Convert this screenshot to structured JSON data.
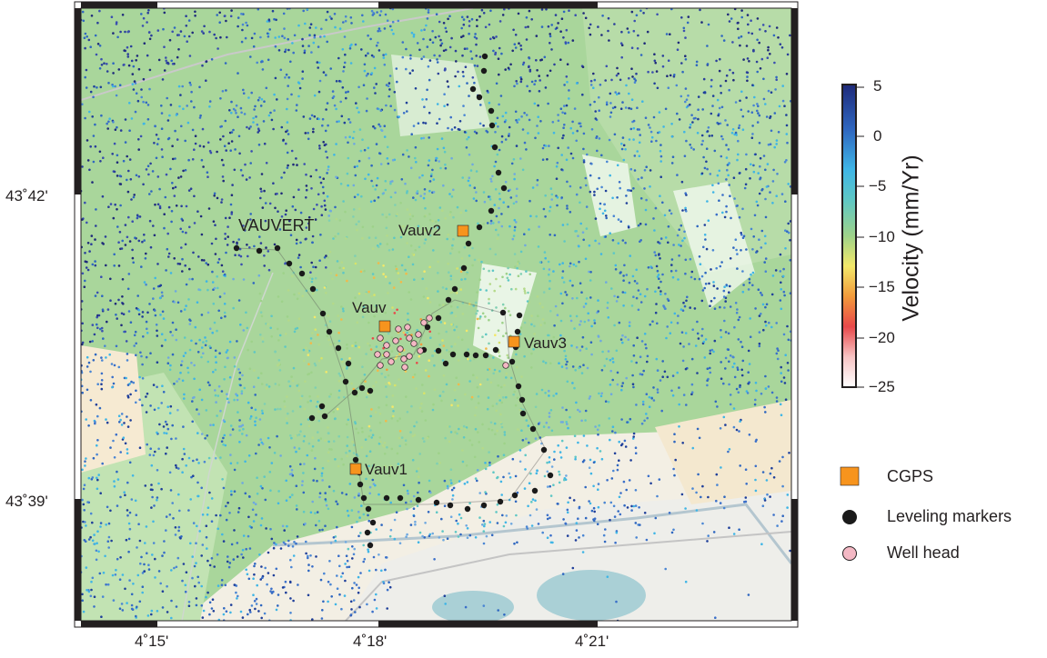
{
  "map": {
    "x_ticks": [
      "4˚15'",
      "4˚18'",
      "4˚21'"
    ],
    "y_ticks": [
      "43˚42'",
      "43˚39'"
    ],
    "town_label": "VAUVERT",
    "cgps_sites": [
      {
        "name": "Vauv",
        "label": "Vauv"
      },
      {
        "name": "Vauv1",
        "label": "Vauv1"
      },
      {
        "name": "Vauv2",
        "label": "Vauv2"
      },
      {
        "name": "Vauv3",
        "label": "Vauv3"
      }
    ]
  },
  "colorbar": {
    "title": "Velocity (mm/Yr)",
    "range": [
      -25,
      5
    ],
    "ticks": [
      "5",
      "0",
      "−5",
      "−10",
      "−15",
      "−20",
      "−25"
    ]
  },
  "legend": {
    "items": [
      {
        "name": "cgps",
        "label": "CGPS",
        "color": "#f7941d"
      },
      {
        "name": "leveling",
        "label": "Leveling markers",
        "color": "#1a1a1a"
      },
      {
        "name": "well",
        "label": "Well head",
        "color": "#f4b8c4"
      }
    ]
  }
}
